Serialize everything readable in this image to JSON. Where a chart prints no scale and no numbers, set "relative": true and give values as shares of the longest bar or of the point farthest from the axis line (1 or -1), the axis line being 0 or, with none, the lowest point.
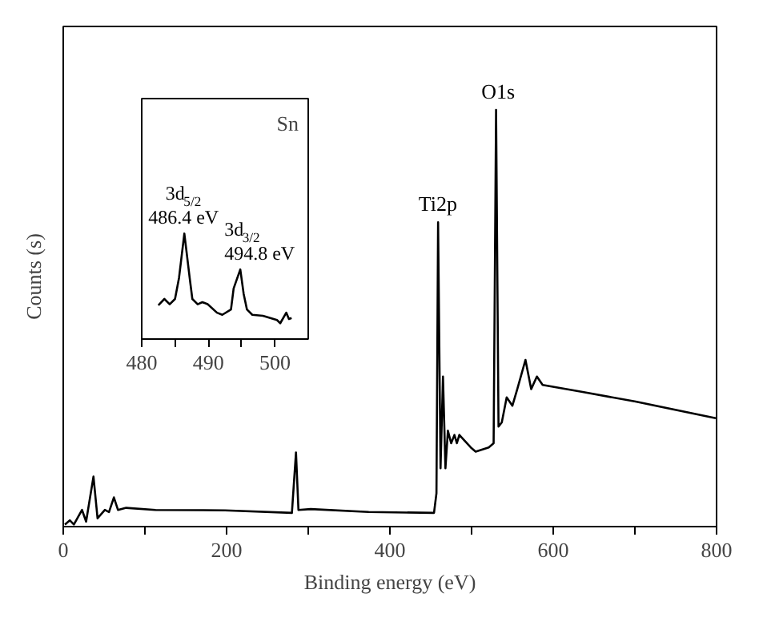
{
  "chart_data": [
    {
      "type": "line",
      "xlabel": "Binding energy (eV)",
      "ylabel": "Counts (s)",
      "relative": true,
      "xlim": [
        0,
        800
      ],
      "xticks": [
        0,
        {
          "value": 100,
          "label": null
        },
        200,
        {
          "value": 300,
          "label": null
        },
        400,
        {
          "value": 500,
          "label": null
        },
        600,
        {
          "value": 700,
          "label": null
        },
        800
      ],
      "series": [
        {
          "color": "#000000",
          "x": [
            2,
            8,
            13,
            23,
            28,
            37,
            42,
            51,
            56,
            62,
            67,
            77,
            113,
            198,
            280,
            285,
            288,
            303,
            374,
            454,
            457,
            459,
            462,
            465,
            468,
            471,
            475,
            479,
            482,
            485,
            499,
            505,
            521,
            527,
            530,
            533,
            537,
            543,
            550,
            556,
            566,
            573,
            580,
            587,
            636,
            701,
            799
          ],
          "values": [
            0.005,
            0.015,
            0.005,
            0.04,
            0.012,
            0.12,
            0.02,
            0.04,
            0.035,
            0.07,
            0.04,
            0.045,
            0.04,
            0.039,
            0.033,
            0.178,
            0.04,
            0.042,
            0.035,
            0.033,
            0.08,
            0.73,
            0.14,
            0.36,
            0.14,
            0.23,
            0.2,
            0.22,
            0.2,
            0.22,
            0.19,
            0.18,
            0.19,
            0.2,
            1.0,
            0.24,
            0.25,
            0.31,
            0.29,
            0.33,
            0.4,
            0.33,
            0.36,
            0.34,
            0.323,
            0.3,
            0.26
          ]
        }
      ],
      "annotations": [
        {
          "text": "Ti2p",
          "x": 459,
          "y": 0.73
        },
        {
          "text": "O1s",
          "x": 530,
          "y": 1.0
        }
      ]
    },
    {
      "type": "line",
      "relative": true,
      "xlim": [
        480,
        505
      ],
      "xticks": [
        480,
        {
          "value": 485,
          "label": null
        },
        490,
        {
          "value": 495,
          "label": null
        },
        500
      ],
      "series": [
        {
          "color": "#000000",
          "x": [
            482.5,
            483.4,
            484.2,
            485.0,
            485.6,
            486.4,
            487.2,
            487.6,
            488.4,
            489.1,
            489.9,
            491.3,
            492.1,
            493.4,
            493.8,
            494.8,
            495.3,
            495.8,
            496.6,
            498.2,
            500.3,
            500.8,
            501.7,
            502.1,
            502.5
          ],
          "values": [
            0.32,
            0.38,
            0.33,
            0.38,
            0.58,
            1.0,
            0.58,
            0.38,
            0.33,
            0.35,
            0.33,
            0.25,
            0.23,
            0.28,
            0.48,
            0.66,
            0.43,
            0.28,
            0.23,
            0.22,
            0.18,
            0.15,
            0.25,
            0.19,
            0.2
          ]
        }
      ],
      "annotations": [
        "Sn",
        {
          "text": "3d$_{5/2}$\n486.4 eV",
          "x": 486.4,
          "y": 1.0
        },
        {
          "text": "3d$_{3/2}$\n494.8 eV",
          "x": 494.8,
          "y": 0.66
        }
      ]
    }
  ]
}
